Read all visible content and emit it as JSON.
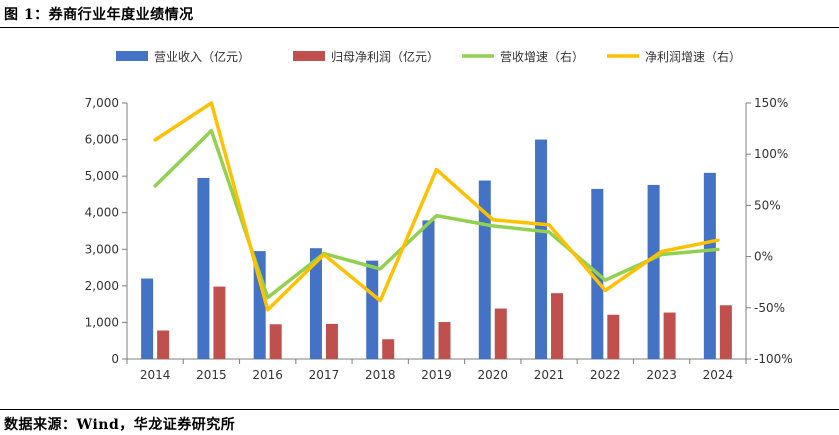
{
  "figure_title": "图 1：券商行业年度业绩情况",
  "source": "数据来源：Wind，华龙证券研究所",
  "chart_data": {
    "type": "bar",
    "categories": [
      "2014",
      "2015",
      "2016",
      "2017",
      "2018",
      "2019",
      "2020",
      "2021",
      "2022",
      "2023",
      "2024"
    ],
    "series": [
      {
        "name": "营业收入（亿元）",
        "kind": "bar",
        "axis": "left",
        "color": "#4472c4",
        "values": [
          2200,
          4950,
          2950,
          3030,
          2690,
          3790,
          4880,
          6000,
          4650,
          4760,
          5090
        ]
      },
      {
        "name": "归母净利润（亿元）",
        "kind": "bar",
        "axis": "left",
        "color": "#c0504d",
        "values": [
          780,
          1980,
          950,
          960,
          540,
          1010,
          1380,
          1800,
          1210,
          1270,
          1470
        ]
      },
      {
        "name": "营收增速（右）",
        "kind": "line",
        "axis": "right",
        "color": "#92d050",
        "values": [
          69,
          123,
          -40,
          3,
          -12,
          40,
          30,
          24,
          -23,
          2,
          7
        ]
      },
      {
        "name": "净利润增速（右）",
        "kind": "line",
        "axis": "right",
        "color": "#ffc000",
        "values": [
          114,
          150,
          -52,
          2,
          -43,
          85,
          36,
          31,
          -33,
          5,
          16
        ]
      }
    ],
    "y_left": {
      "min": 0,
      "max": 7000,
      "ticks": [
        "0",
        "1,000",
        "2,000",
        "3,000",
        "4,000",
        "5,000",
        "6,000",
        "7,000"
      ]
    },
    "y_right": {
      "min": -100,
      "max": 150,
      "ticks": [
        "-100%",
        "-50%",
        "0%",
        "50%",
        "100%",
        "150%"
      ]
    },
    "legend_position": "top",
    "grid": false
  }
}
